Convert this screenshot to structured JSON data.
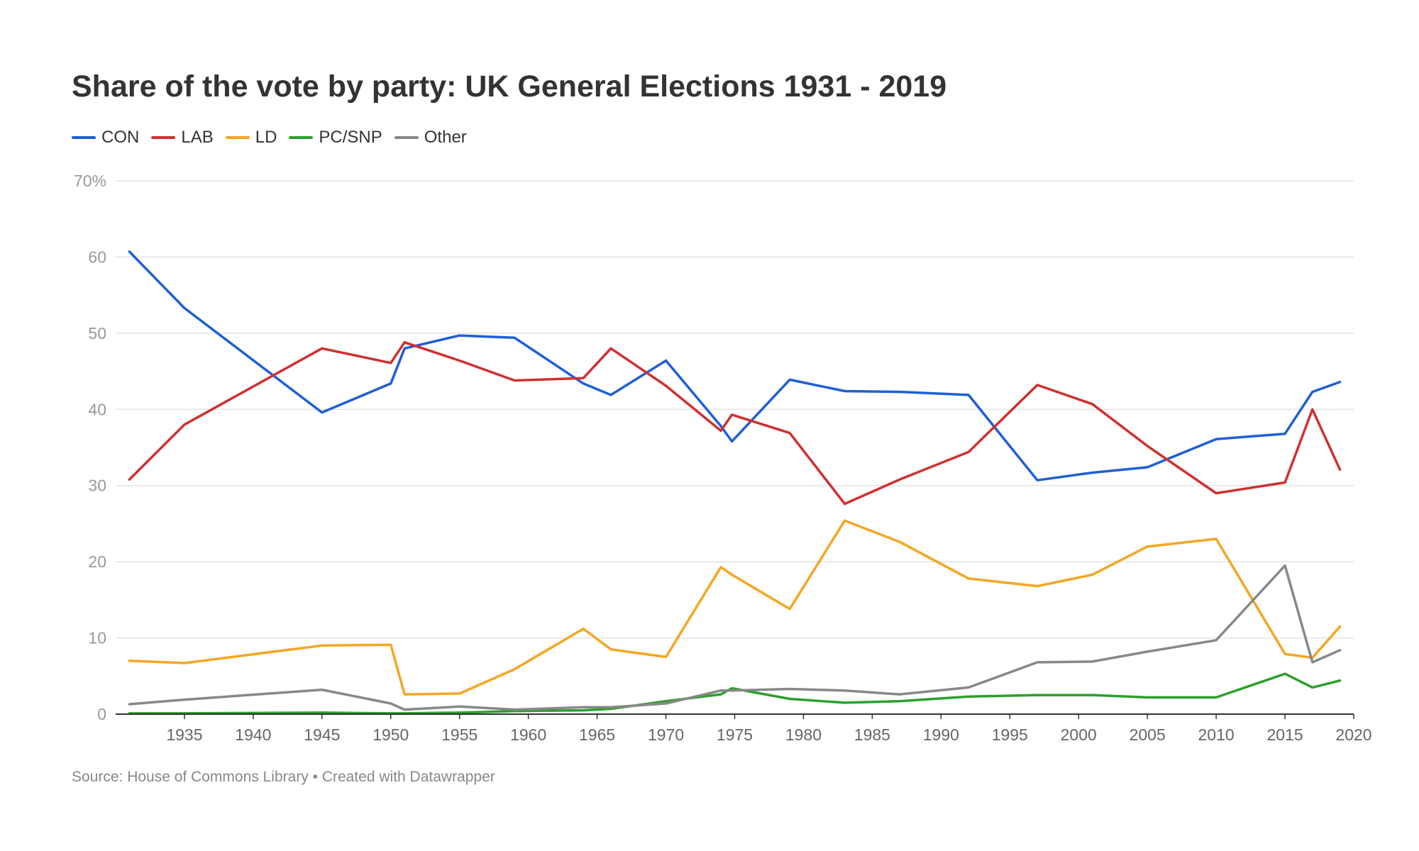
{
  "chart_data": {
    "type": "line",
    "title": "Share of the vote by party: UK General Elections 1931 - 2019",
    "source": "Source: House of Commons Library • Created with Datawrapper",
    "xlabel": "",
    "ylabel": "",
    "xlim": [
      1930,
      2020
    ],
    "ylim": [
      0,
      70
    ],
    "y_ticks": [
      0,
      10,
      20,
      30,
      40,
      50,
      60,
      70
    ],
    "y_tick_labels": [
      "0",
      "10",
      "20",
      "30",
      "40",
      "50",
      "60",
      "70%"
    ],
    "x_ticks": [
      1935,
      1940,
      1945,
      1950,
      1955,
      1960,
      1965,
      1970,
      1975,
      1980,
      1985,
      1990,
      1995,
      2000,
      2005,
      2010,
      2015,
      2020
    ],
    "grid": true,
    "legend_position": "top-left",
    "x": [
      1931,
      1935,
      1945,
      1950,
      1951,
      1955,
      1959,
      1964,
      1966,
      1970,
      1974,
      1974.8,
      1979,
      1983,
      1987,
      1992,
      1997,
      2001,
      2005,
      2010,
      2015,
      2017,
      2019
    ],
    "series": [
      {
        "name": "CON",
        "color": "#1f5fd6",
        "values": [
          60.7,
          53.3,
          39.6,
          43.4,
          48.0,
          49.7,
          49.4,
          43.4,
          41.9,
          46.4,
          37.8,
          35.8,
          43.9,
          42.4,
          42.3,
          41.9,
          30.7,
          31.7,
          32.4,
          36.1,
          36.8,
          42.3,
          43.6
        ]
      },
      {
        "name": "LAB",
        "color": "#d03030",
        "values": [
          30.8,
          38.0,
          48.0,
          46.1,
          48.8,
          46.4,
          43.8,
          44.1,
          48.0,
          43.1,
          37.2,
          39.3,
          36.9,
          27.6,
          30.8,
          34.4,
          43.2,
          40.7,
          35.2,
          29.0,
          30.4,
          40.0,
          32.1
        ]
      },
      {
        "name": "LD",
        "color": "#f5a623",
        "values": [
          7.0,
          6.7,
          9.0,
          9.1,
          2.6,
          2.7,
          5.9,
          11.2,
          8.5,
          7.5,
          19.3,
          18.3,
          13.8,
          25.4,
          22.6,
          17.8,
          16.8,
          18.3,
          22.0,
          23.0,
          7.9,
          7.4,
          11.5
        ]
      },
      {
        "name": "PC/SNP",
        "color": "#2ca02c",
        "values": [
          0.1,
          0.1,
          0.2,
          0.1,
          0.1,
          0.2,
          0.4,
          0.5,
          0.7,
          1.7,
          2.6,
          3.4,
          2.0,
          1.5,
          1.7,
          2.3,
          2.5,
          2.5,
          2.2,
          2.2,
          5.3,
          3.5,
          4.4
        ]
      },
      {
        "name": "Other",
        "color": "#888888",
        "values": [
          1.3,
          1.9,
          3.2,
          1.4,
          0.6,
          1.0,
          0.6,
          0.9,
          0.9,
          1.4,
          3.1,
          3.1,
          3.3,
          3.1,
          2.6,
          3.5,
          6.8,
          6.9,
          8.2,
          9.7,
          19.5,
          6.8,
          8.4
        ]
      }
    ]
  }
}
